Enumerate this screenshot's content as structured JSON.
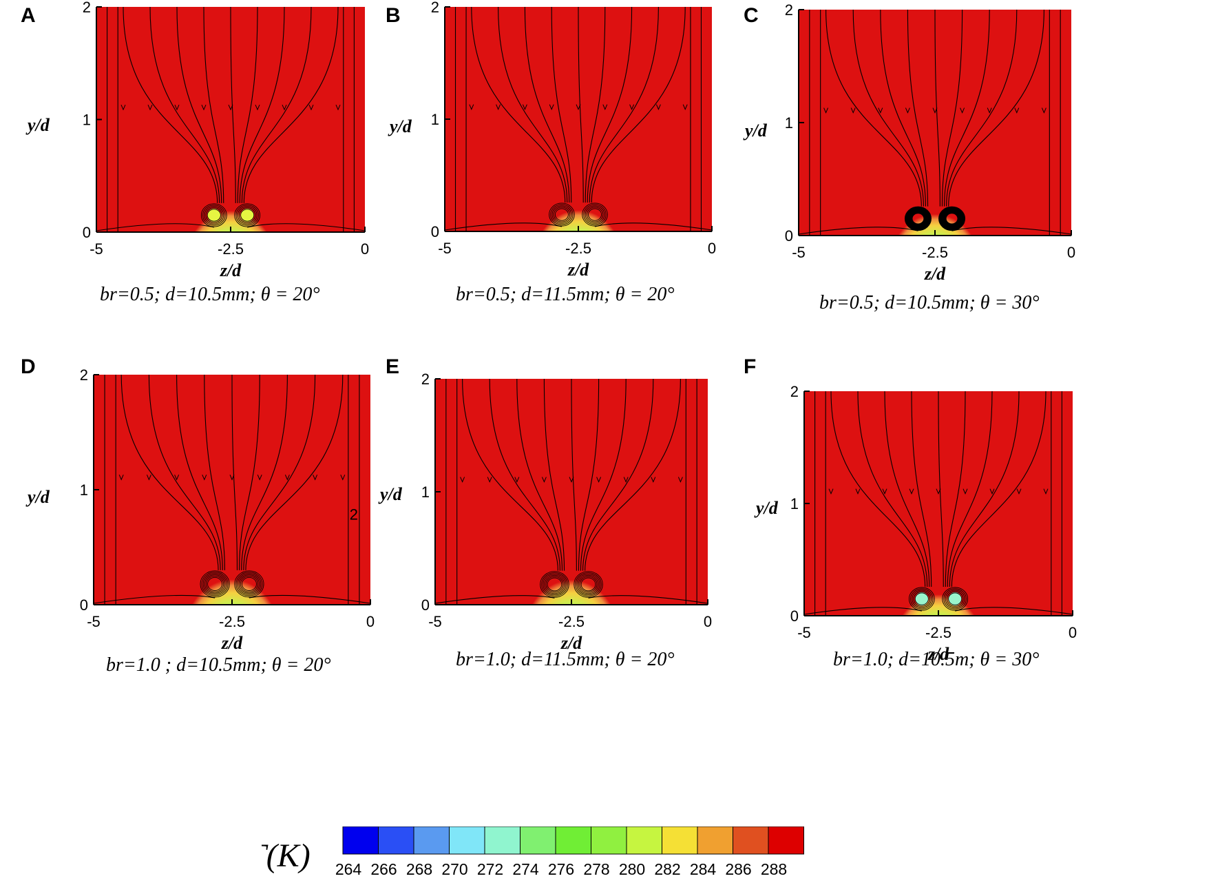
{
  "panels": [
    {
      "letter": "A",
      "caption": "br=0.5; d=10.5mm; θ = 20°",
      "y_axis_label": "y/d",
      "x_axis_label": "z/d",
      "y_ticks": [
        "0",
        "1",
        "2"
      ],
      "x_ticks": [
        "-5",
        "-2.5",
        "0"
      ],
      "extra_label": ""
    },
    {
      "letter": "B",
      "caption": "br=0.5; d=11.5mm; θ = 20°",
      "y_axis_label": "y/d",
      "x_axis_label": "z/d",
      "y_ticks": [
        "0",
        "1",
        "2"
      ],
      "x_ticks": [
        "-5",
        "-2.5",
        "0"
      ],
      "extra_label": ""
    },
    {
      "letter": "C",
      "caption": "br=0.5; d=10.5mm; θ = 30°",
      "y_axis_label": "y/d",
      "x_axis_label": "z/d",
      "y_ticks": [
        "0",
        "1",
        "2"
      ],
      "x_ticks": [
        "-5",
        "-2.5",
        "0"
      ],
      "extra_label": ""
    },
    {
      "letter": "D",
      "caption": "br=1.0 ; d=10.5mm; θ = 20°",
      "y_axis_label": "y/d",
      "x_axis_label": "z/d",
      "y_ticks": [
        "0",
        "1",
        "2"
      ],
      "x_ticks": [
        "-5",
        "-2.5",
        "0"
      ],
      "extra_label": "2"
    },
    {
      "letter": "E",
      "caption": "br=1.0;  d=11.5mm;  θ = 20°",
      "y_axis_label": "y/d",
      "x_axis_label": "z/d",
      "y_ticks": [
        "0",
        "1",
        "2"
      ],
      "x_ticks": [
        "-5",
        "-2.5",
        "0"
      ],
      "extra_label": ""
    },
    {
      "letter": "F",
      "caption": "br=1.0; d=10.5m; θ = 30°",
      "y_axis_label": "y/d",
      "x_axis_label": "z/d",
      "y_ticks": [
        "0",
        "1",
        "2"
      ],
      "x_ticks": [
        "-5",
        "-2.5",
        "0"
      ],
      "extra_label": ""
    }
  ],
  "colorbar": {
    "title": "T(K)",
    "ticks": [
      "264",
      "266",
      "268",
      "270",
      "272",
      "274",
      "276",
      "278",
      "280",
      "282",
      "284",
      "286",
      "288"
    ],
    "colors": [
      "#0000ee",
      "#2a4ff5",
      "#5a9af0",
      "#80e6f8",
      "#90f5cf",
      "#80f070",
      "#70ee35",
      "#90f040",
      "#c6f540",
      "#f5e035",
      "#f0a030",
      "#e05020",
      "#dd0000"
    ]
  },
  "colors": {
    "background_field": "#dd1111",
    "streamline": "#000000"
  }
}
